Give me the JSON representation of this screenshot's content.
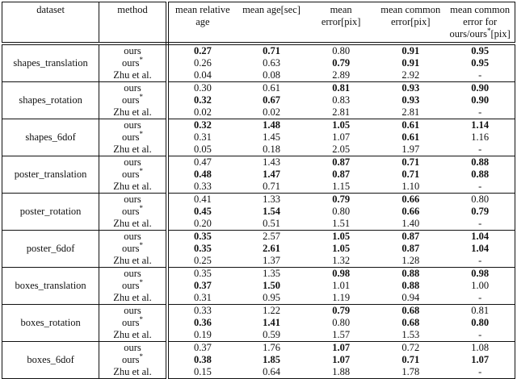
{
  "table": {
    "col_headers": [
      {
        "key": "dataset",
        "lines": [
          "dataset"
        ]
      },
      {
        "key": "method",
        "lines": [
          "method"
        ]
      },
      {
        "key": "mean-relative-age",
        "lines": [
          "mean relative",
          "age"
        ]
      },
      {
        "key": "mean-age-sec",
        "lines": [
          "mean age[sec]"
        ]
      },
      {
        "key": "mean-error-pix",
        "lines": [
          "mean",
          "error[pix]"
        ]
      },
      {
        "key": "mean-common-error-pix",
        "lines": [
          "mean common",
          "error[pix]"
        ]
      },
      {
        "key": "mean-common-error-ours",
        "lines": [
          "mean common",
          "error for",
          "ours/ours*[pix]"
        ]
      }
    ],
    "groups": [
      {
        "dataset": "shapes_translation",
        "rows": [
          {
            "method": "ours",
            "values": [
              "0.27",
              "0.71",
              "0.80",
              "0.91",
              "0.95"
            ],
            "bold": [
              true,
              true,
              false,
              true,
              true
            ]
          },
          {
            "method": "ours*",
            "values": [
              "0.26",
              "0.63",
              "0.79",
              "0.91",
              "0.95"
            ],
            "bold": [
              false,
              false,
              true,
              true,
              true
            ]
          },
          {
            "method": "Zhu et al.",
            "values": [
              "0.04",
              "0.08",
              "2.89",
              "2.92",
              "-"
            ],
            "bold": [
              false,
              false,
              false,
              false,
              false
            ]
          }
        ]
      },
      {
        "dataset": "shapes_rotation",
        "rows": [
          {
            "method": "ours",
            "values": [
              "0.30",
              "0.61",
              "0.81",
              "0.93",
              "0.90"
            ],
            "bold": [
              false,
              false,
              true,
              true,
              true
            ]
          },
          {
            "method": "ours*",
            "values": [
              "0.32",
              "0.67",
              "0.83",
              "0.93",
              "0.90"
            ],
            "bold": [
              true,
              true,
              false,
              true,
              true
            ]
          },
          {
            "method": "Zhu et al.",
            "values": [
              "0.02",
              "0.02",
              "2.81",
              "2.81",
              "-"
            ],
            "bold": [
              false,
              false,
              false,
              false,
              false
            ]
          }
        ]
      },
      {
        "dataset": "shapes_6dof",
        "rows": [
          {
            "method": "ours",
            "values": [
              "0.32",
              "1.48",
              "1.05",
              "0.61",
              "1.14"
            ],
            "bold": [
              true,
              true,
              true,
              true,
              true
            ]
          },
          {
            "method": "ours*",
            "values": [
              "0.31",
              "1.45",
              "1.07",
              "0.61",
              "1.16"
            ],
            "bold": [
              false,
              false,
              false,
              true,
              false
            ]
          },
          {
            "method": "Zhu et al.",
            "values": [
              "0.05",
              "0.18",
              "2.05",
              "1.97",
              "-"
            ],
            "bold": [
              false,
              false,
              false,
              false,
              false
            ]
          }
        ]
      },
      {
        "dataset": "poster_translation",
        "rows": [
          {
            "method": "ours",
            "values": [
              "0.47",
              "1.43",
              "0.87",
              "0.71",
              "0.88"
            ],
            "bold": [
              false,
              false,
              true,
              true,
              true
            ]
          },
          {
            "method": "ours*",
            "values": [
              "0.48",
              "1.47",
              "0.87",
              "0.71",
              "0.88"
            ],
            "bold": [
              true,
              true,
              true,
              true,
              true
            ]
          },
          {
            "method": "Zhu et al.",
            "values": [
              "0.33",
              "0.71",
              "1.15",
              "1.10",
              "-"
            ],
            "bold": [
              false,
              false,
              false,
              false,
              false
            ]
          }
        ]
      },
      {
        "dataset": "poster_rotation",
        "rows": [
          {
            "method": "ours",
            "values": [
              "0.41",
              "1.33",
              "0.79",
              "0.66",
              "0.80"
            ],
            "bold": [
              false,
              false,
              true,
              true,
              false
            ]
          },
          {
            "method": "ours*",
            "values": [
              "0.45",
              "1.54",
              "0.80",
              "0.66",
              "0.79"
            ],
            "bold": [
              true,
              true,
              false,
              true,
              true
            ]
          },
          {
            "method": "Zhu et al.",
            "values": [
              "0.20",
              "0.51",
              "1.51",
              "1.40",
              "-"
            ],
            "bold": [
              false,
              false,
              false,
              false,
              false
            ]
          }
        ]
      },
      {
        "dataset": "poster_6dof",
        "rows": [
          {
            "method": "ours",
            "values": [
              "0.35",
              "2.57",
              "1.05",
              "0.87",
              "1.04"
            ],
            "bold": [
              true,
              false,
              true,
              true,
              true
            ]
          },
          {
            "method": "ours*",
            "values": [
              "0.35",
              "2.61",
              "1.05",
              "0.87",
              "1.04"
            ],
            "bold": [
              true,
              true,
              true,
              true,
              true
            ]
          },
          {
            "method": "Zhu et al.",
            "values": [
              "0.25",
              "1.37",
              "1.32",
              "1.28",
              "-"
            ],
            "bold": [
              false,
              false,
              false,
              false,
              false
            ]
          }
        ]
      },
      {
        "dataset": "boxes_translation",
        "rows": [
          {
            "method": "ours",
            "values": [
              "0.35",
              "1.35",
              "0.98",
              "0.88",
              "0.98"
            ],
            "bold": [
              false,
              false,
              true,
              true,
              true
            ]
          },
          {
            "method": "ours*",
            "values": [
              "0.37",
              "1.50",
              "1.01",
              "0.88",
              "1.00"
            ],
            "bold": [
              true,
              true,
              false,
              true,
              false
            ]
          },
          {
            "method": "Zhu et al.",
            "values": [
              "0.31",
              "0.95",
              "1.19",
              "0.94",
              "-"
            ],
            "bold": [
              false,
              false,
              false,
              false,
              false
            ]
          }
        ]
      },
      {
        "dataset": "boxes_rotation",
        "rows": [
          {
            "method": "ours",
            "values": [
              "0.33",
              "1.22",
              "0.79",
              "0.68",
              "0.81"
            ],
            "bold": [
              false,
              false,
              true,
              true,
              false
            ]
          },
          {
            "method": "ours*",
            "values": [
              "0.36",
              "1.41",
              "0.80",
              "0.68",
              "0.80"
            ],
            "bold": [
              true,
              true,
              false,
              true,
              true
            ]
          },
          {
            "method": "Zhu et al.",
            "values": [
              "0.19",
              "0.59",
              "1.57",
              "1.53",
              "-"
            ],
            "bold": [
              false,
              false,
              false,
              false,
              false
            ]
          }
        ]
      },
      {
        "dataset": "boxes_6dof",
        "rows": [
          {
            "method": "ours",
            "values": [
              "0.37",
              "1.76",
              "1.07",
              "0.72",
              "1.08"
            ],
            "bold": [
              false,
              false,
              true,
              false,
              false
            ]
          },
          {
            "method": "ours*",
            "values": [
              "0.38",
              "1.85",
              "1.07",
              "0.71",
              "1.07"
            ],
            "bold": [
              true,
              true,
              true,
              true,
              true
            ]
          },
          {
            "method": "Zhu et al.",
            "values": [
              "0.15",
              "0.64",
              "1.88",
              "1.78",
              "-"
            ],
            "bold": [
              false,
              false,
              false,
              false,
              false
            ]
          }
        ]
      }
    ]
  }
}
